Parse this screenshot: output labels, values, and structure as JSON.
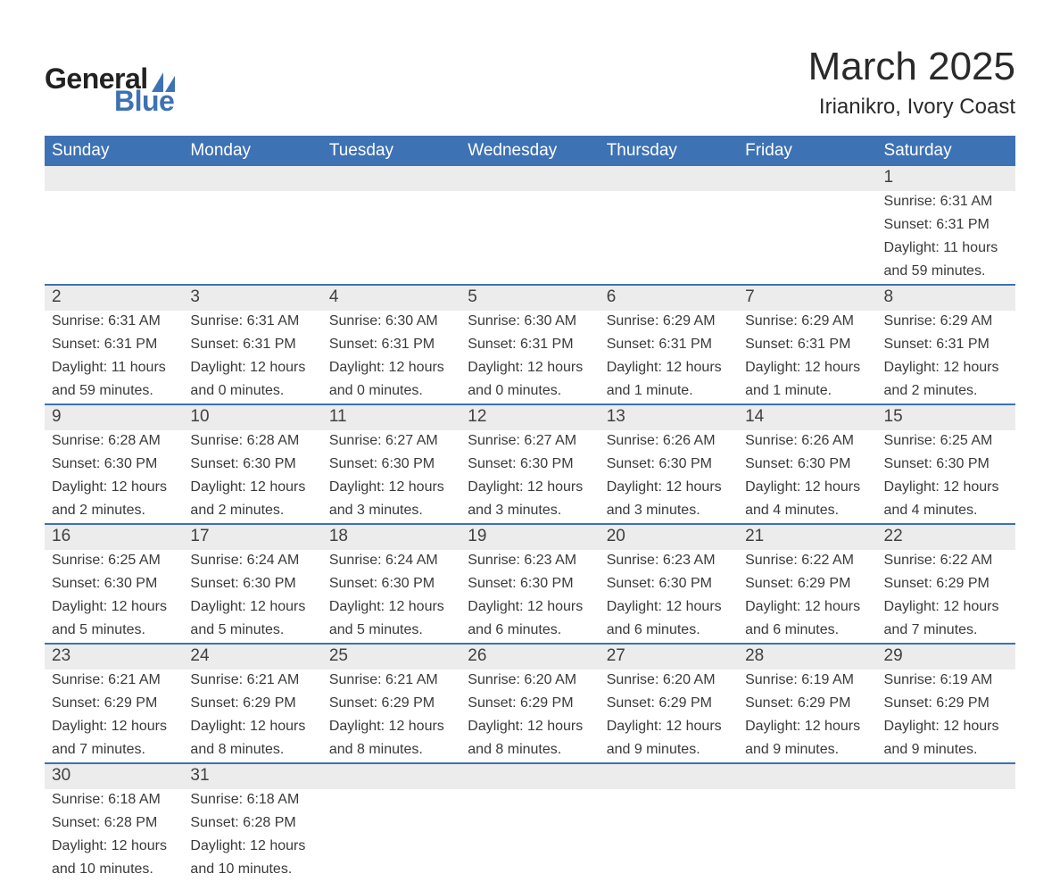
{
  "brand": {
    "word1": "General",
    "word2": "Blue",
    "accent_color": "#3d72b4"
  },
  "title": "March 2025",
  "location": "Irianikro, Ivory Coast",
  "colors": {
    "header_bg": "#3d72b4",
    "header_text": "#ffffff",
    "daynum_bg": "#ececec",
    "row_divider": "#3d72b4",
    "body_text": "#3a3a3a",
    "page_bg": "#ffffff"
  },
  "typography": {
    "title_fontsize": 44,
    "location_fontsize": 24,
    "weekday_fontsize": 19,
    "daynum_fontsize": 19,
    "cell_fontsize": 16,
    "font_family": "Arial"
  },
  "weekdays": [
    "Sunday",
    "Monday",
    "Tuesday",
    "Wednesday",
    "Thursday",
    "Friday",
    "Saturday"
  ],
  "weeks": [
    {
      "nums": [
        "",
        "",
        "",
        "",
        "",
        "",
        "1"
      ],
      "sunrise": [
        "",
        "",
        "",
        "",
        "",
        "",
        "Sunrise: 6:31 AM"
      ],
      "sunset": [
        "",
        "",
        "",
        "",
        "",
        "",
        "Sunset: 6:31 PM"
      ],
      "day1": [
        "",
        "",
        "",
        "",
        "",
        "",
        "Daylight: 11 hours"
      ],
      "day2": [
        "",
        "",
        "",
        "",
        "",
        "",
        "and 59 minutes."
      ]
    },
    {
      "nums": [
        "2",
        "3",
        "4",
        "5",
        "6",
        "7",
        "8"
      ],
      "sunrise": [
        "Sunrise: 6:31 AM",
        "Sunrise: 6:31 AM",
        "Sunrise: 6:30 AM",
        "Sunrise: 6:30 AM",
        "Sunrise: 6:29 AM",
        "Sunrise: 6:29 AM",
        "Sunrise: 6:29 AM"
      ],
      "sunset": [
        "Sunset: 6:31 PM",
        "Sunset: 6:31 PM",
        "Sunset: 6:31 PM",
        "Sunset: 6:31 PM",
        "Sunset: 6:31 PM",
        "Sunset: 6:31 PM",
        "Sunset: 6:31 PM"
      ],
      "day1": [
        "Daylight: 11 hours",
        "Daylight: 12 hours",
        "Daylight: 12 hours",
        "Daylight: 12 hours",
        "Daylight: 12 hours",
        "Daylight: 12 hours",
        "Daylight: 12 hours"
      ],
      "day2": [
        "and 59 minutes.",
        "and 0 minutes.",
        "and 0 minutes.",
        "and 0 minutes.",
        "and 1 minute.",
        "and 1 minute.",
        "and 2 minutes."
      ]
    },
    {
      "nums": [
        "9",
        "10",
        "11",
        "12",
        "13",
        "14",
        "15"
      ],
      "sunrise": [
        "Sunrise: 6:28 AM",
        "Sunrise: 6:28 AM",
        "Sunrise: 6:27 AM",
        "Sunrise: 6:27 AM",
        "Sunrise: 6:26 AM",
        "Sunrise: 6:26 AM",
        "Sunrise: 6:25 AM"
      ],
      "sunset": [
        "Sunset: 6:30 PM",
        "Sunset: 6:30 PM",
        "Sunset: 6:30 PM",
        "Sunset: 6:30 PM",
        "Sunset: 6:30 PM",
        "Sunset: 6:30 PM",
        "Sunset: 6:30 PM"
      ],
      "day1": [
        "Daylight: 12 hours",
        "Daylight: 12 hours",
        "Daylight: 12 hours",
        "Daylight: 12 hours",
        "Daylight: 12 hours",
        "Daylight: 12 hours",
        "Daylight: 12 hours"
      ],
      "day2": [
        "and 2 minutes.",
        "and 2 minutes.",
        "and 3 minutes.",
        "and 3 minutes.",
        "and 3 minutes.",
        "and 4 minutes.",
        "and 4 minutes."
      ]
    },
    {
      "nums": [
        "16",
        "17",
        "18",
        "19",
        "20",
        "21",
        "22"
      ],
      "sunrise": [
        "Sunrise: 6:25 AM",
        "Sunrise: 6:24 AM",
        "Sunrise: 6:24 AM",
        "Sunrise: 6:23 AM",
        "Sunrise: 6:23 AM",
        "Sunrise: 6:22 AM",
        "Sunrise: 6:22 AM"
      ],
      "sunset": [
        "Sunset: 6:30 PM",
        "Sunset: 6:30 PM",
        "Sunset: 6:30 PM",
        "Sunset: 6:30 PM",
        "Sunset: 6:30 PM",
        "Sunset: 6:29 PM",
        "Sunset: 6:29 PM"
      ],
      "day1": [
        "Daylight: 12 hours",
        "Daylight: 12 hours",
        "Daylight: 12 hours",
        "Daylight: 12 hours",
        "Daylight: 12 hours",
        "Daylight: 12 hours",
        "Daylight: 12 hours"
      ],
      "day2": [
        "and 5 minutes.",
        "and 5 minutes.",
        "and 5 minutes.",
        "and 6 minutes.",
        "and 6 minutes.",
        "and 6 minutes.",
        "and 7 minutes."
      ]
    },
    {
      "nums": [
        "23",
        "24",
        "25",
        "26",
        "27",
        "28",
        "29"
      ],
      "sunrise": [
        "Sunrise: 6:21 AM",
        "Sunrise: 6:21 AM",
        "Sunrise: 6:21 AM",
        "Sunrise: 6:20 AM",
        "Sunrise: 6:20 AM",
        "Sunrise: 6:19 AM",
        "Sunrise: 6:19 AM"
      ],
      "sunset": [
        "Sunset: 6:29 PM",
        "Sunset: 6:29 PM",
        "Sunset: 6:29 PM",
        "Sunset: 6:29 PM",
        "Sunset: 6:29 PM",
        "Sunset: 6:29 PM",
        "Sunset: 6:29 PM"
      ],
      "day1": [
        "Daylight: 12 hours",
        "Daylight: 12 hours",
        "Daylight: 12 hours",
        "Daylight: 12 hours",
        "Daylight: 12 hours",
        "Daylight: 12 hours",
        "Daylight: 12 hours"
      ],
      "day2": [
        "and 7 minutes.",
        "and 8 minutes.",
        "and 8 minutes.",
        "and 8 minutes.",
        "and 9 minutes.",
        "and 9 minutes.",
        "and 9 minutes."
      ]
    },
    {
      "nums": [
        "30",
        "31",
        "",
        "",
        "",
        "",
        ""
      ],
      "sunrise": [
        "Sunrise: 6:18 AM",
        "Sunrise: 6:18 AM",
        "",
        "",
        "",
        "",
        ""
      ],
      "sunset": [
        "Sunset: 6:28 PM",
        "Sunset: 6:28 PM",
        "",
        "",
        "",
        "",
        ""
      ],
      "day1": [
        "Daylight: 12 hours",
        "Daylight: 12 hours",
        "",
        "",
        "",
        "",
        ""
      ],
      "day2": [
        "and 10 minutes.",
        "and 10 minutes.",
        "",
        "",
        "",
        "",
        ""
      ]
    }
  ]
}
